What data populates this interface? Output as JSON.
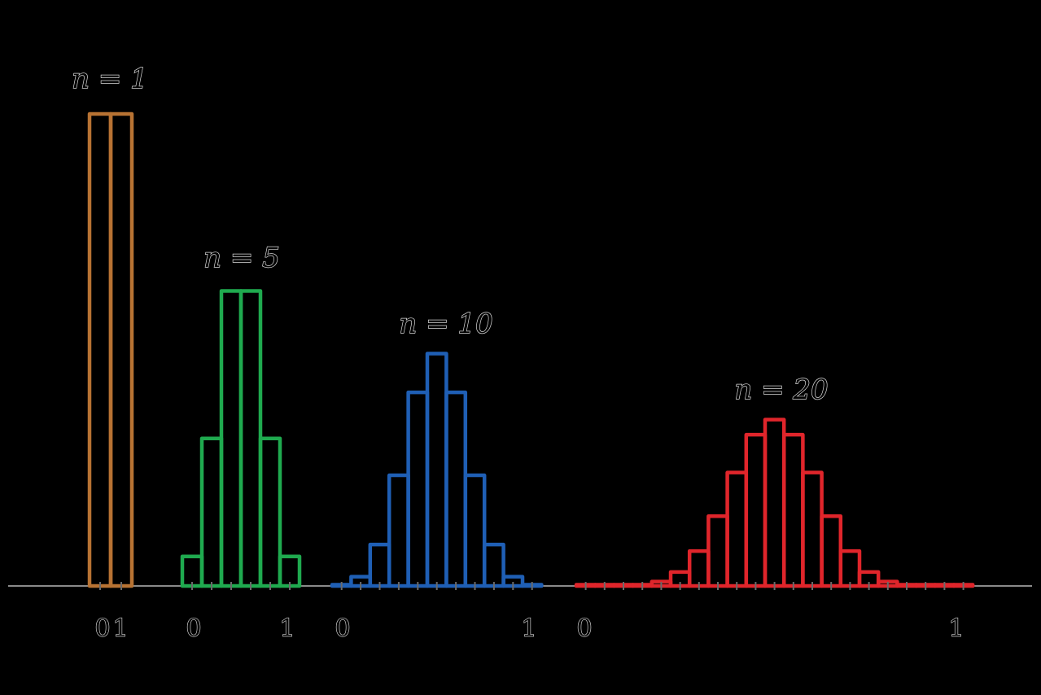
{
  "chart_data": [
    {
      "type": "bar",
      "title": "n = 1",
      "categories": [
        "0",
        "1"
      ],
      "values": [
        0.5,
        0.5
      ],
      "color": "#b87333",
      "tick_labels": [
        "0",
        "1"
      ]
    },
    {
      "type": "bar",
      "title": "n = 5",
      "categories": [
        "0",
        "0.2",
        "0.4",
        "0.6",
        "0.8",
        "1"
      ],
      "values": [
        0.03125,
        0.15625,
        0.3125,
        0.3125,
        0.15625,
        0.03125
      ],
      "color": "#1faa4f",
      "tick_labels": [
        "0",
        "1"
      ]
    },
    {
      "type": "bar",
      "title": "n = 10",
      "categories": [
        "0",
        "0.1",
        "0.2",
        "0.3",
        "0.4",
        "0.5",
        "0.6",
        "0.7",
        "0.8",
        "0.9",
        "1"
      ],
      "values": [
        0.001,
        0.0098,
        0.0439,
        0.1172,
        0.2051,
        0.2461,
        0.2051,
        0.1172,
        0.0439,
        0.0098,
        0.001
      ],
      "color": "#1f5fb5",
      "tick_labels": [
        "0",
        "1"
      ]
    },
    {
      "type": "bar",
      "title": "n = 20",
      "categories": [
        "0",
        "0.05",
        "0.1",
        "0.15",
        "0.2",
        "0.25",
        "0.3",
        "0.35",
        "0.4",
        "0.45",
        "0.5",
        "0.55",
        "0.6",
        "0.65",
        "0.7",
        "0.75",
        "0.8",
        "0.85",
        "0.9",
        "0.95",
        "1"
      ],
      "values": [
        1e-06,
        2e-05,
        0.0002,
        0.0011,
        0.0046,
        0.0148,
        0.037,
        0.0739,
        0.1201,
        0.1602,
        0.1762,
        0.1602,
        0.1201,
        0.0739,
        0.037,
        0.0148,
        0.0046,
        0.0011,
        0.0002,
        2e-05,
        1e-06
      ],
      "color": "#e0252b",
      "tick_labels": [
        "0",
        "1"
      ]
    }
  ]
}
